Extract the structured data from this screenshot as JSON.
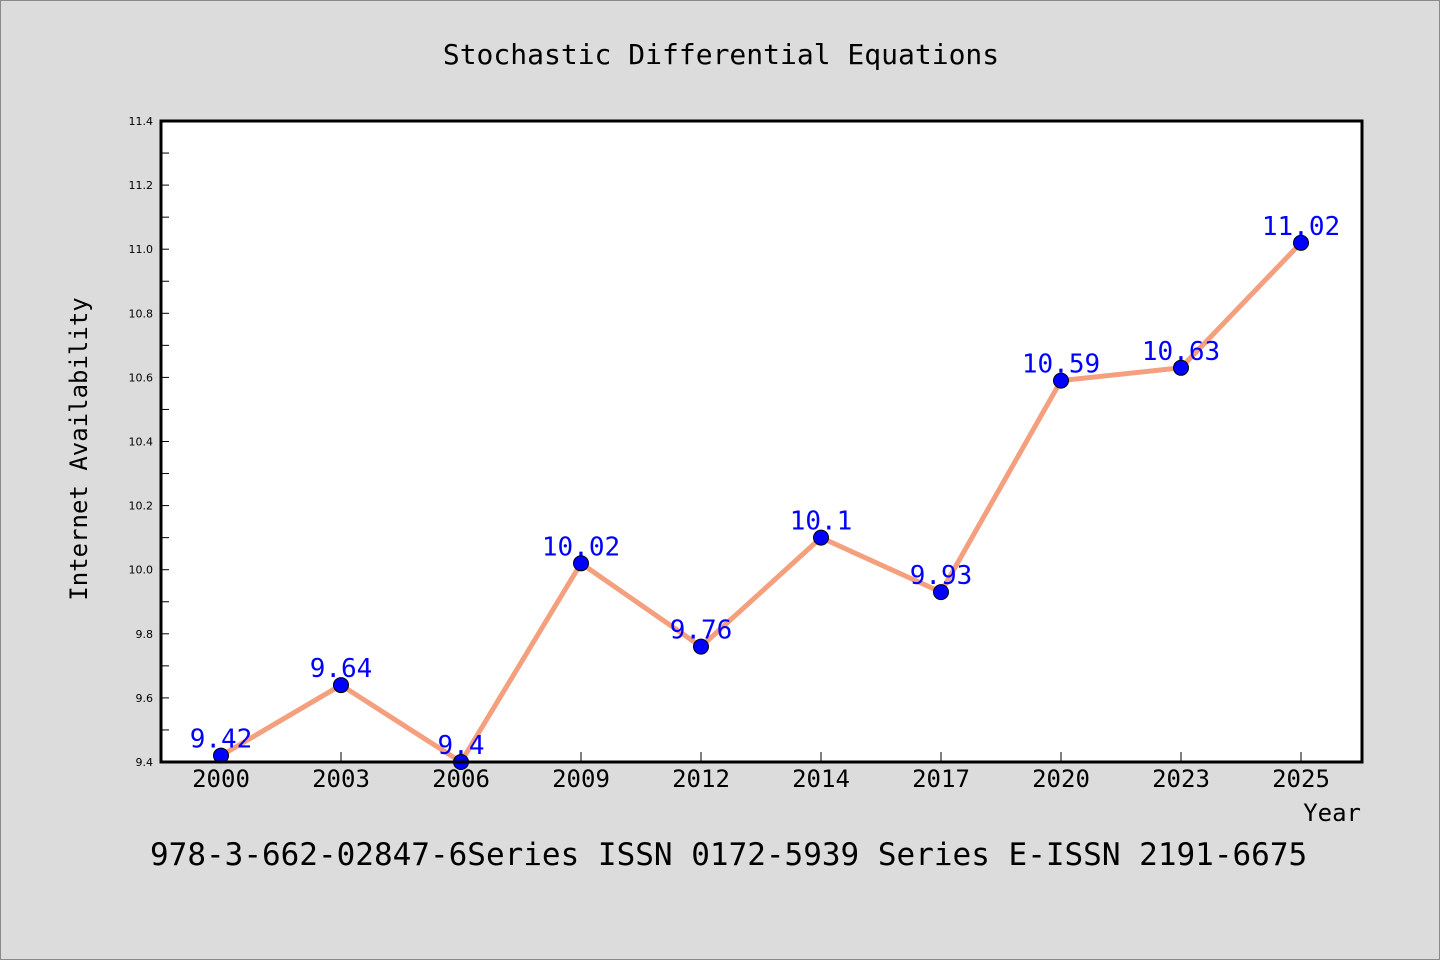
{
  "colors": {
    "background": "#dcdcdc",
    "plot_area": "#ffffff",
    "line": "#f4a07e",
    "marker": "#0000ff",
    "data_label": "#0000ff"
  },
  "footer": {
    "text": "978-3-662-02847-6Series ISSN 0172-5939 Series E-ISSN 2191-6675"
  },
  "chart_data": {
    "type": "line",
    "title": "Stochastic Differential Equations",
    "xlabel": "Year",
    "ylabel": "Internet Availability",
    "categories": [
      "2000",
      "2003",
      "2006",
      "2009",
      "2012",
      "2014",
      "2017",
      "2020",
      "2023",
      "2025"
    ],
    "series": [
      {
        "values": [
          9.42,
          9.64,
          9.4,
          10.02,
          9.76,
          10.1,
          9.93,
          10.59,
          10.63,
          11.02
        ],
        "data_labels": [
          "9.42",
          "9.64",
          "9.4",
          "10.02",
          "9.76",
          "10.1",
          "9.93",
          "10.59",
          "10.63",
          "11.02"
        ]
      }
    ],
    "ylim": [
      9.4,
      11.4
    ],
    "yticks": [
      "9.4",
      "9.6",
      "9.8",
      "10.0",
      "10.2",
      "10.4",
      "10.6",
      "10.8",
      "11.0",
      "11.2",
      "11.4"
    ],
    "grid": false,
    "legend": "none",
    "markers": true
  }
}
